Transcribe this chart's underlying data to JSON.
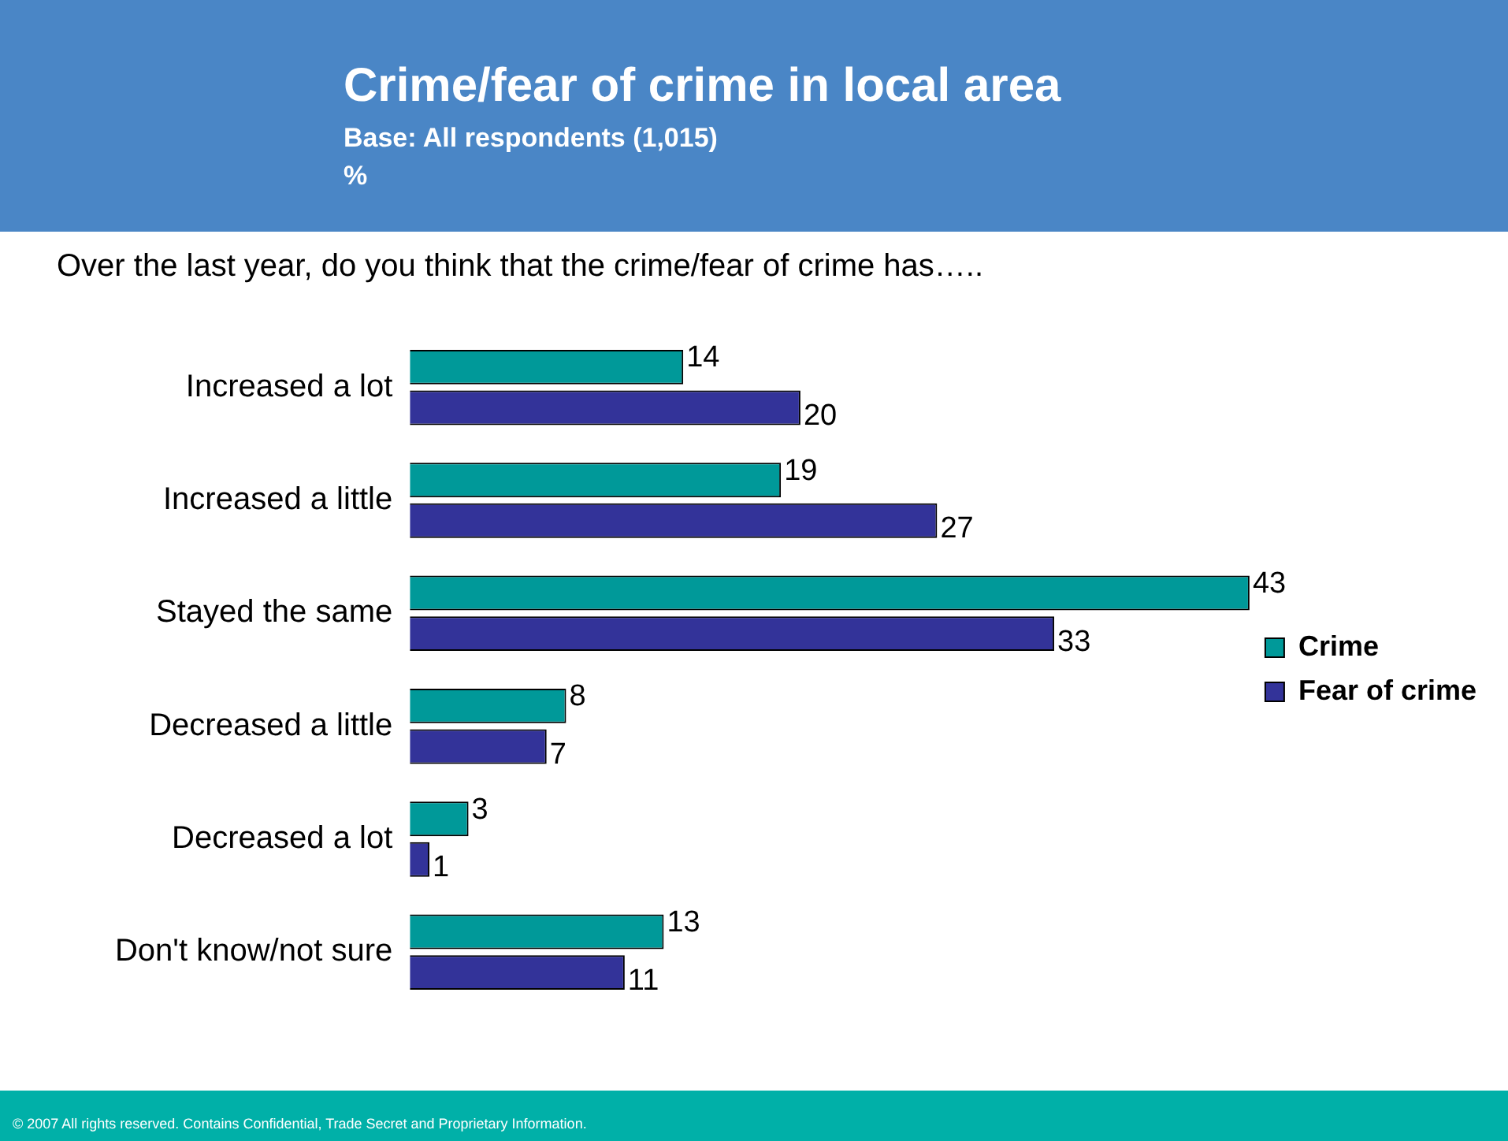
{
  "chart_data": {
    "type": "bar",
    "orientation": "horizontal",
    "title": "Crime/fear of crime in local area",
    "subtitle": "Base: All respondents (1,015)",
    "categories": [
      "Increased a lot",
      "Increased a little",
      "Stayed the same",
      "Decreased a little",
      "Decreased a lot",
      "Don't know/not sure"
    ],
    "series": [
      {
        "name": "Crime",
        "color": "#009999",
        "values": [
          14,
          19,
          43,
          8,
          3,
          13
        ]
      },
      {
        "name": "Fear of crime",
        "color": "#333399",
        "values": [
          20,
          27,
          33,
          7,
          1,
          11
        ]
      }
    ],
    "data_labels": true,
    "legend": "right",
    "annotations": [
      "%",
      "Over the last year, do you think that the crime/fear of crime has…..",
      "© 2007 All rights reserved. Contains Confidential, Trade Secret and Proprietary Information."
    ]
  }
}
